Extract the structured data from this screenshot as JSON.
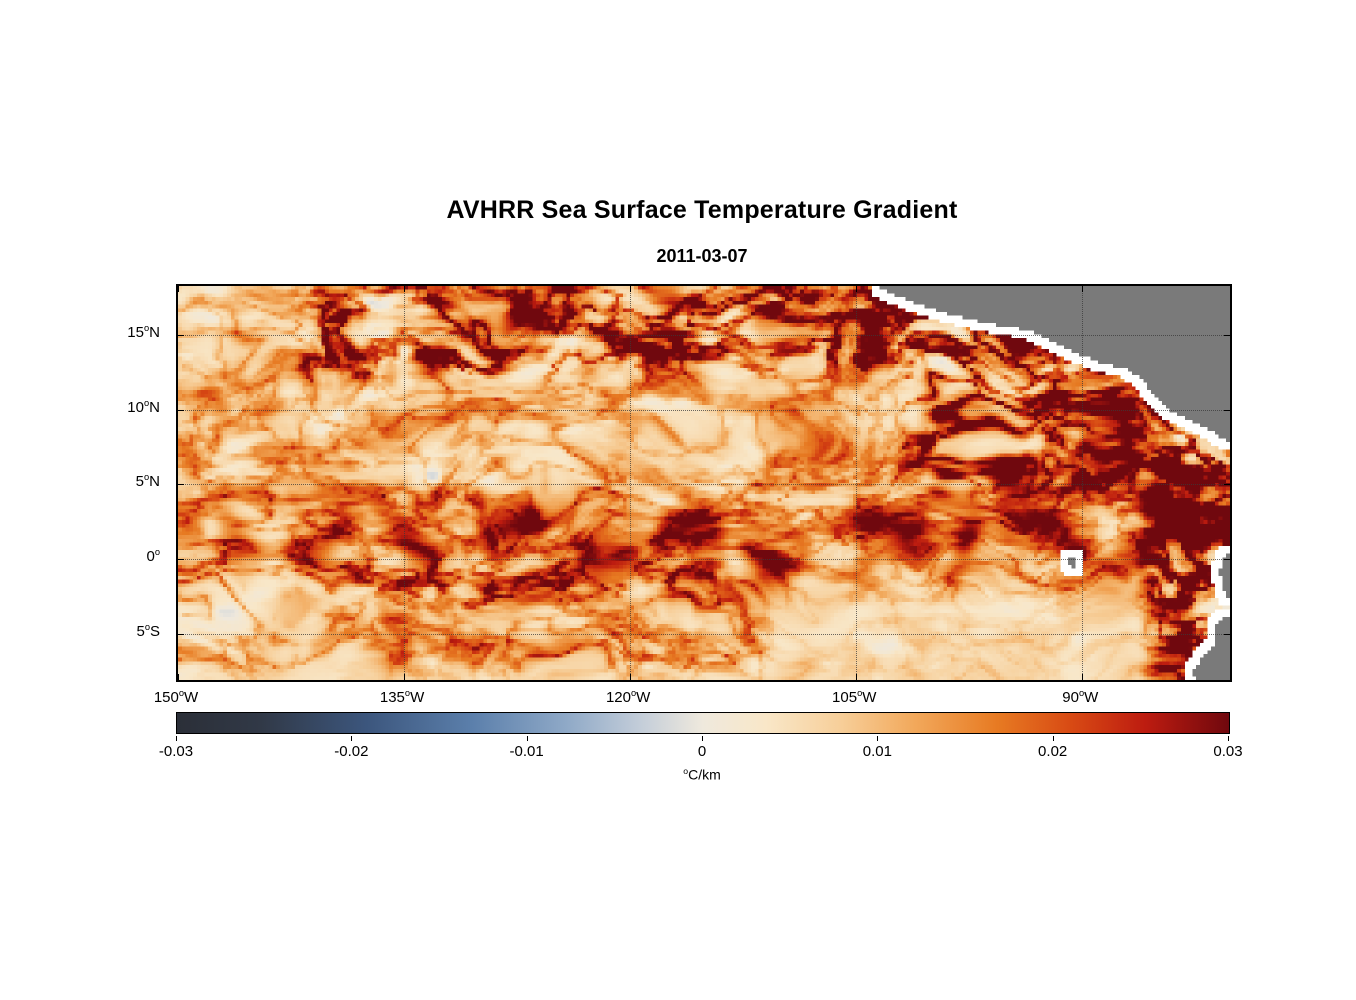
{
  "figure": {
    "title": "AVHRR Sea Surface Temperature Gradient",
    "subtitle": "2011-03-07"
  },
  "chart_data": {
    "type": "heatmap",
    "title": "AVHRR Sea Surface Temperature Gradient",
    "subtitle": "2011-03-07",
    "xlabel": "",
    "ylabel": "",
    "xlim": [
      -150,
      -80.2
    ],
    "ylim": [
      -8.1,
      18.3
    ],
    "grid": "dotted",
    "x_ticks": [
      {
        "v": -150,
        "num": "150",
        "sup": "o",
        "suf": "W",
        "label": "150°W"
      },
      {
        "v": -135,
        "num": "135",
        "sup": "o",
        "suf": "W",
        "label": "135°W"
      },
      {
        "v": -120,
        "num": "120",
        "sup": "o",
        "suf": "W",
        "label": "120°W"
      },
      {
        "v": -105,
        "num": "105",
        "sup": "o",
        "suf": "W",
        "label": "105°W"
      },
      {
        "v": -90,
        "num": "90",
        "sup": "o",
        "suf": "W",
        "label": "90°W"
      }
    ],
    "y_ticks": [
      {
        "v": 15,
        "num": "15",
        "sup": "o",
        "suf": "N",
        "label": "15°N"
      },
      {
        "v": 10,
        "num": "10",
        "sup": "o",
        "suf": "N",
        "label": "10°N"
      },
      {
        "v": 5,
        "num": "5",
        "sup": "o",
        "suf": "N",
        "label": "5°N"
      },
      {
        "v": 0,
        "num": "0",
        "sup": "o",
        "suf": "",
        "label": "0°"
      },
      {
        "v": -5,
        "num": "5",
        "sup": "o",
        "suf": "S",
        "label": "5°S"
      }
    ],
    "colorbar": {
      "min": -0.03,
      "max": 0.03,
      "ticks": [
        {
          "v": -0.03,
          "label": "-0.03"
        },
        {
          "v": -0.02,
          "label": "-0.02"
        },
        {
          "v": -0.01,
          "label": "-0.01"
        },
        {
          "v": 0,
          "label": "0"
        },
        {
          "v": 0.01,
          "label": "0.01"
        },
        {
          "v": 0.02,
          "label": "0.02"
        },
        {
          "v": 0.03,
          "label": "0.03"
        }
      ],
      "unit_sup": "o",
      "unit": "C/km",
      "stops": [
        {
          "t": 0.0,
          "c": "#2b2f38"
        },
        {
          "t": 0.08,
          "c": "#313947"
        },
        {
          "t": 0.18,
          "c": "#3c567d"
        },
        {
          "t": 0.28,
          "c": "#5b7fab"
        },
        {
          "t": 0.37,
          "c": "#8fa9c7"
        },
        {
          "t": 0.44,
          "c": "#c3cdd9"
        },
        {
          "t": 0.5,
          "c": "#efe9dd"
        },
        {
          "t": 0.56,
          "c": "#f9e7c8"
        },
        {
          "t": 0.63,
          "c": "#f7cf9a"
        },
        {
          "t": 0.7,
          "c": "#f2a95c"
        },
        {
          "t": 0.78,
          "c": "#e77a22"
        },
        {
          "t": 0.85,
          "c": "#d84a14"
        },
        {
          "t": 0.92,
          "c": "#bd1c10"
        },
        {
          "t": 1.0,
          "c": "#70080e"
        }
      ]
    },
    "land_color": "#7a7a7a",
    "coast_color": "#ffffff",
    "land_polygons": [
      {
        "name": "central-america",
        "pts": [
          [
            -104,
            18.4
          ],
          [
            -100.8,
            17.0
          ],
          [
            -97.8,
            16.1
          ],
          [
            -95.2,
            15.6
          ],
          [
            -93.4,
            15.3
          ],
          [
            -91.8,
            14.5
          ],
          [
            -90.2,
            13.7
          ],
          [
            -88.7,
            13.1
          ],
          [
            -87.2,
            12.8
          ],
          [
            -86.2,
            12.2
          ],
          [
            -85.5,
            11.3
          ],
          [
            -85.0,
            10.6
          ],
          [
            -84.2,
            10.0
          ],
          [
            -83.0,
            9.4
          ],
          [
            -81.8,
            8.8
          ],
          [
            -80.5,
            8.0
          ],
          [
            -80.0,
            7.2
          ],
          [
            -79.6,
            6.0
          ],
          [
            -75,
            5.8
          ],
          [
            -75,
            19.5
          ]
        ]
      },
      {
        "name": "ecuador",
        "pts": [
          [
            -80.0,
            1.0
          ],
          [
            -80.5,
            0.2
          ],
          [
            -80.9,
            -0.8
          ],
          [
            -80.7,
            -1.8
          ],
          [
            -80.3,
            -2.6
          ],
          [
            -80.0,
            -3.3
          ],
          [
            -75,
            -3.3
          ],
          [
            -75,
            1.0
          ]
        ]
      },
      {
        "name": "peru",
        "pts": [
          [
            -80.6,
            -3.9
          ],
          [
            -81.3,
            -4.6
          ],
          [
            -81.1,
            -5.6
          ],
          [
            -82.0,
            -6.5
          ],
          [
            -82.7,
            -7.6
          ],
          [
            -82.3,
            -8.4
          ],
          [
            -75,
            -8.4
          ],
          [
            -75,
            -3.9
          ]
        ]
      },
      {
        "name": "galapagos",
        "pts": [
          [
            -91.05,
            -0.1
          ],
          [
            -90.6,
            0.15
          ],
          [
            -90.3,
            -0.15
          ],
          [
            -90.5,
            -0.55
          ],
          [
            -90.95,
            -0.45
          ]
        ]
      }
    ],
    "field": {
      "description": "Filamentary SST gradient magnitude field: background 0 to 0.01 C/km (cream), frontal filaments 0.02 to 0.03 C/km (orange/red) along the meandering equatorial front (0-3N across basin), tropical-instability-wave band near 14-18N, Central American coastal eddy region (Tehuantepec/Papagayo/Panama), and Peru-Ecuador upwelling front; faint negative patches near -0.005 C/km adjacent to fronts; quiet pale zones 4-8N mid-basin and far southwest.",
      "grid_deg": 0.25,
      "seed": 11,
      "base_value": 0.0035,
      "base_amp": 0.18,
      "front_amp": 0.022,
      "front": {
        "lat_mean": 1.3,
        "meander_amp": 1.4,
        "meander_wavelength_deg": 11,
        "width_deg": 0.95
      },
      "zones": [
        {
          "name": "top-tiw-band",
          "lon0": -140,
          "lon1": -95,
          "lat0": 14.0,
          "lat1": 18.5,
          "amp": 0.85,
          "soft": 3
        },
        {
          "name": "north-filaments",
          "lon0": -150,
          "lon1": -100,
          "lat0": 6,
          "lat1": 16,
          "amp": 0.3,
          "soft": 3
        },
        {
          "name": "central-america-coastal",
          "lon0": -100,
          "lon1": -79,
          "lat0": 6,
          "lat1": 17,
          "amp": 1.05,
          "soft": 2.5
        },
        {
          "name": "peru-ecuador-coastal",
          "lon0": -84.5,
          "lon1": -79,
          "lat0": -8.5,
          "lat1": 7,
          "amp": 1.15,
          "soft": 2
        },
        {
          "name": "equatorial-band",
          "lon0": -150,
          "lon1": -84,
          "lat0": -1.5,
          "lat1": 4,
          "amp": 0.4,
          "soft": 2
        },
        {
          "name": "southwest-filaments",
          "lon0": -150,
          "lon1": -112,
          "lat0": -6.5,
          "lat1": -1.5,
          "amp": 0.42,
          "soft": 2
        }
      ]
    }
  }
}
